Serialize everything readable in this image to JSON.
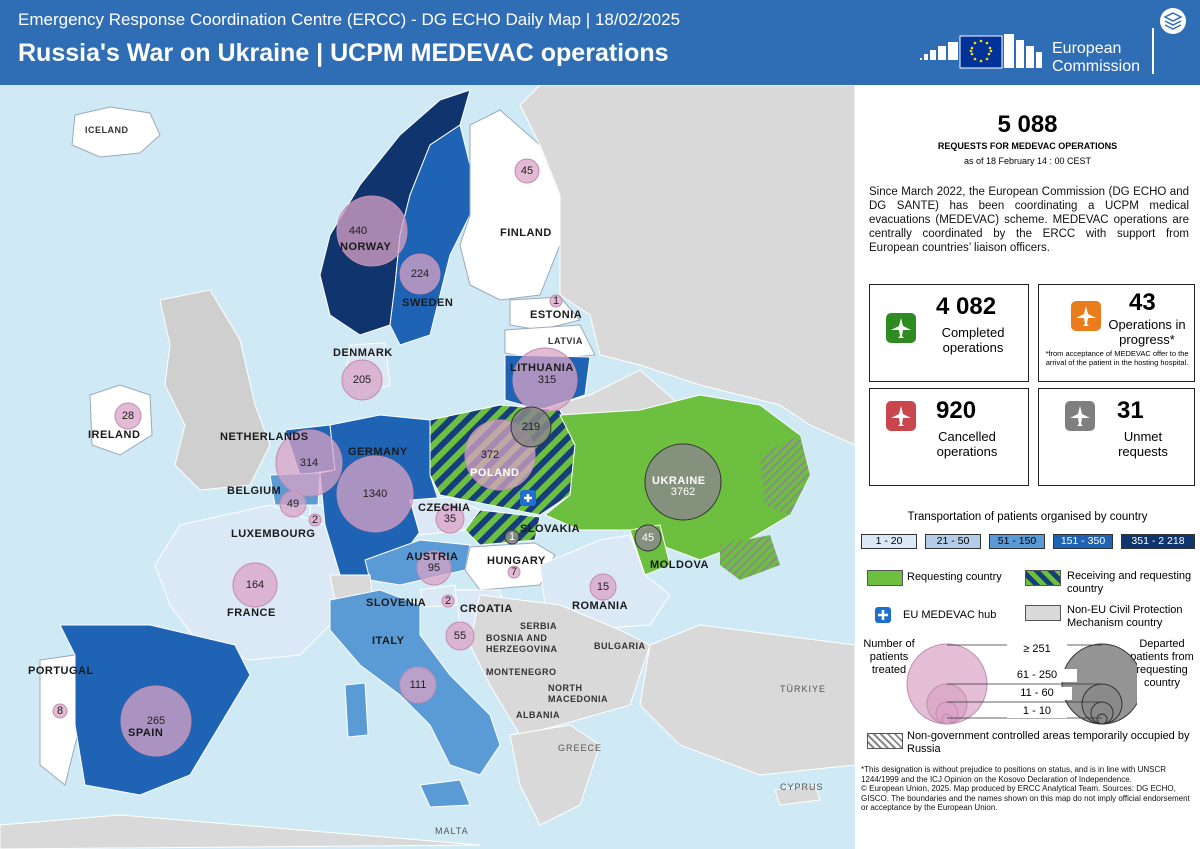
{
  "header": {
    "subtitle": "Emergency Response Coordination Centre (ERCC) - DG ECHO Daily Map | 18/02/2025",
    "title": "Russia's War on Ukraine | UCPM MEDEVAC operations",
    "logo_text_line1": "European",
    "logo_text_line2": "Commission"
  },
  "map": {
    "countries": [
      {
        "name": "ICELAND"
      },
      {
        "name": "NORWAY"
      },
      {
        "name": "SWEDEN"
      },
      {
        "name": "FINLAND"
      },
      {
        "name": "ESTONIA"
      },
      {
        "name": "LATVIA"
      },
      {
        "name": "LITHUANIA"
      },
      {
        "name": "DENMARK"
      },
      {
        "name": "IRELAND"
      },
      {
        "name": "NETHERLANDS"
      },
      {
        "name": "BELGIUM"
      },
      {
        "name": "LUXEMBOURG"
      },
      {
        "name": "GERMANY"
      },
      {
        "name": "POLAND"
      },
      {
        "name": "CZECHIA"
      },
      {
        "name": "SLOVAKIA"
      },
      {
        "name": "AUSTRIA"
      },
      {
        "name": "HUNGARY"
      },
      {
        "name": "UKRAINE"
      },
      {
        "name": "MOLDOVA"
      },
      {
        "name": "FRANCE"
      },
      {
        "name": "SLOVENIA"
      },
      {
        "name": "CROATIA"
      },
      {
        "name": "ROMANIA"
      },
      {
        "name": "SERBIA"
      },
      {
        "name": "BOSNIA AND HERZEGOVINA"
      },
      {
        "name": "BULGARIA"
      },
      {
        "name": "MONTENEGRO"
      },
      {
        "name": "NORTH MACEDONIA"
      },
      {
        "name": "ALBANIA"
      },
      {
        "name": "ITALY"
      },
      {
        "name": "PORTUGAL"
      },
      {
        "name": "SPAIN"
      },
      {
        "name": "GREECE"
      },
      {
        "name": "TÜRKIYE"
      },
      {
        "name": "CYPRUS"
      },
      {
        "name": "MALTA"
      }
    ],
    "patients_treated": [
      {
        "country": "Finland",
        "value": "45"
      },
      {
        "country": "Norway",
        "value": "440"
      },
      {
        "country": "Sweden",
        "value": "224"
      },
      {
        "country": "Estonia",
        "value": "1"
      },
      {
        "country": "Lithuania",
        "value": "315"
      },
      {
        "country": "Denmark",
        "value": "205"
      },
      {
        "country": "Ireland",
        "value": "28"
      },
      {
        "country": "Netherlands",
        "value": "314"
      },
      {
        "country": "Belgium",
        "value": "49"
      },
      {
        "country": "Luxembourg",
        "value": "2"
      },
      {
        "country": "Germany",
        "value": "1340"
      },
      {
        "country": "Poland",
        "value": "372"
      },
      {
        "country": "Czechia",
        "value": "35"
      },
      {
        "country": "Austria",
        "value": "95"
      },
      {
        "country": "Hungary",
        "value": "7"
      },
      {
        "country": "Slovenia",
        "value": "2"
      },
      {
        "country": "Croatia",
        "value": "55"
      },
      {
        "country": "Romania",
        "value": "15"
      },
      {
        "country": "France",
        "value": "164"
      },
      {
        "country": "Italy",
        "value": "111"
      },
      {
        "country": "Spain",
        "value": "265"
      },
      {
        "country": "Portugal",
        "value": "8"
      }
    ],
    "departed_patients": [
      {
        "country": "Poland",
        "value": "219"
      },
      {
        "country": "Ukraine",
        "value": "3762"
      },
      {
        "country": "Moldova",
        "value": "45"
      },
      {
        "country": "Slovakia",
        "value": "1"
      }
    ]
  },
  "panel": {
    "total": "5 088",
    "total_label": "REQUESTS FOR MEDEVAC OPERATIONS",
    "as_of": "as of 18 February 14 : 00 CEST",
    "description": "Since March 2022, the European Commission (DG ECHO and DG SANTE) has been coordinating a UCPM medical evacuations (MEDEVAC) scheme. MEDEVAC operations are centrally coordinated by the ERCC with support from European countries’ liaison officers.",
    "stats": {
      "completed_value": "4 082",
      "completed_label": "Completed operations",
      "progress_value": "43",
      "progress_label": "Operations in progress*",
      "progress_note": "*from acceptance of MEDEVAC offer to the arrival of the patient in the hosting hospital.",
      "cancelled_value": "920",
      "cancelled_label": "Cancelled operations",
      "unmet_value": "31",
      "unmet_label": "Unmet requests"
    },
    "legend": {
      "title": "Transportation of patients organised by country",
      "ranges": [
        "1 - 20",
        "21 - 50",
        "51 - 150",
        "151 - 350",
        "351 - 2 218"
      ],
      "range_colors": [
        "#dbe8f5",
        "#b3cde8",
        "#5b9bd5",
        "#1f64b4",
        "#10356e"
      ],
      "requesting": "Requesting country",
      "receiving_requesting": "Receiving and requesting country",
      "hub": "EU MEDEVAC hub",
      "non_eu": "Non-EU Civil Protection Mechanism country",
      "treated_label": "Number of patients treated",
      "departed_label": "Departed patients from requesting country",
      "sizes": [
        "≥ 251",
        "61 - 250",
        "11 - 60",
        "1 - 10"
      ],
      "occupied": "Non-government controlled areas temporarily occupied by Russia"
    },
    "footer": {
      "line1": "*This designation is without prejudice to positions on status, and is in line with UNSCR 1244/1999 and the ICJ Opinion on the Kosovo Declaration of Independence.",
      "line2": "© European Union, 2025. Map produced by ERCC Analytical Team. Sources: DG ECHO, GISCO. The boundaries and the names shown on this map do not imply official endorsement or acceptance by the European Union."
    }
  }
}
